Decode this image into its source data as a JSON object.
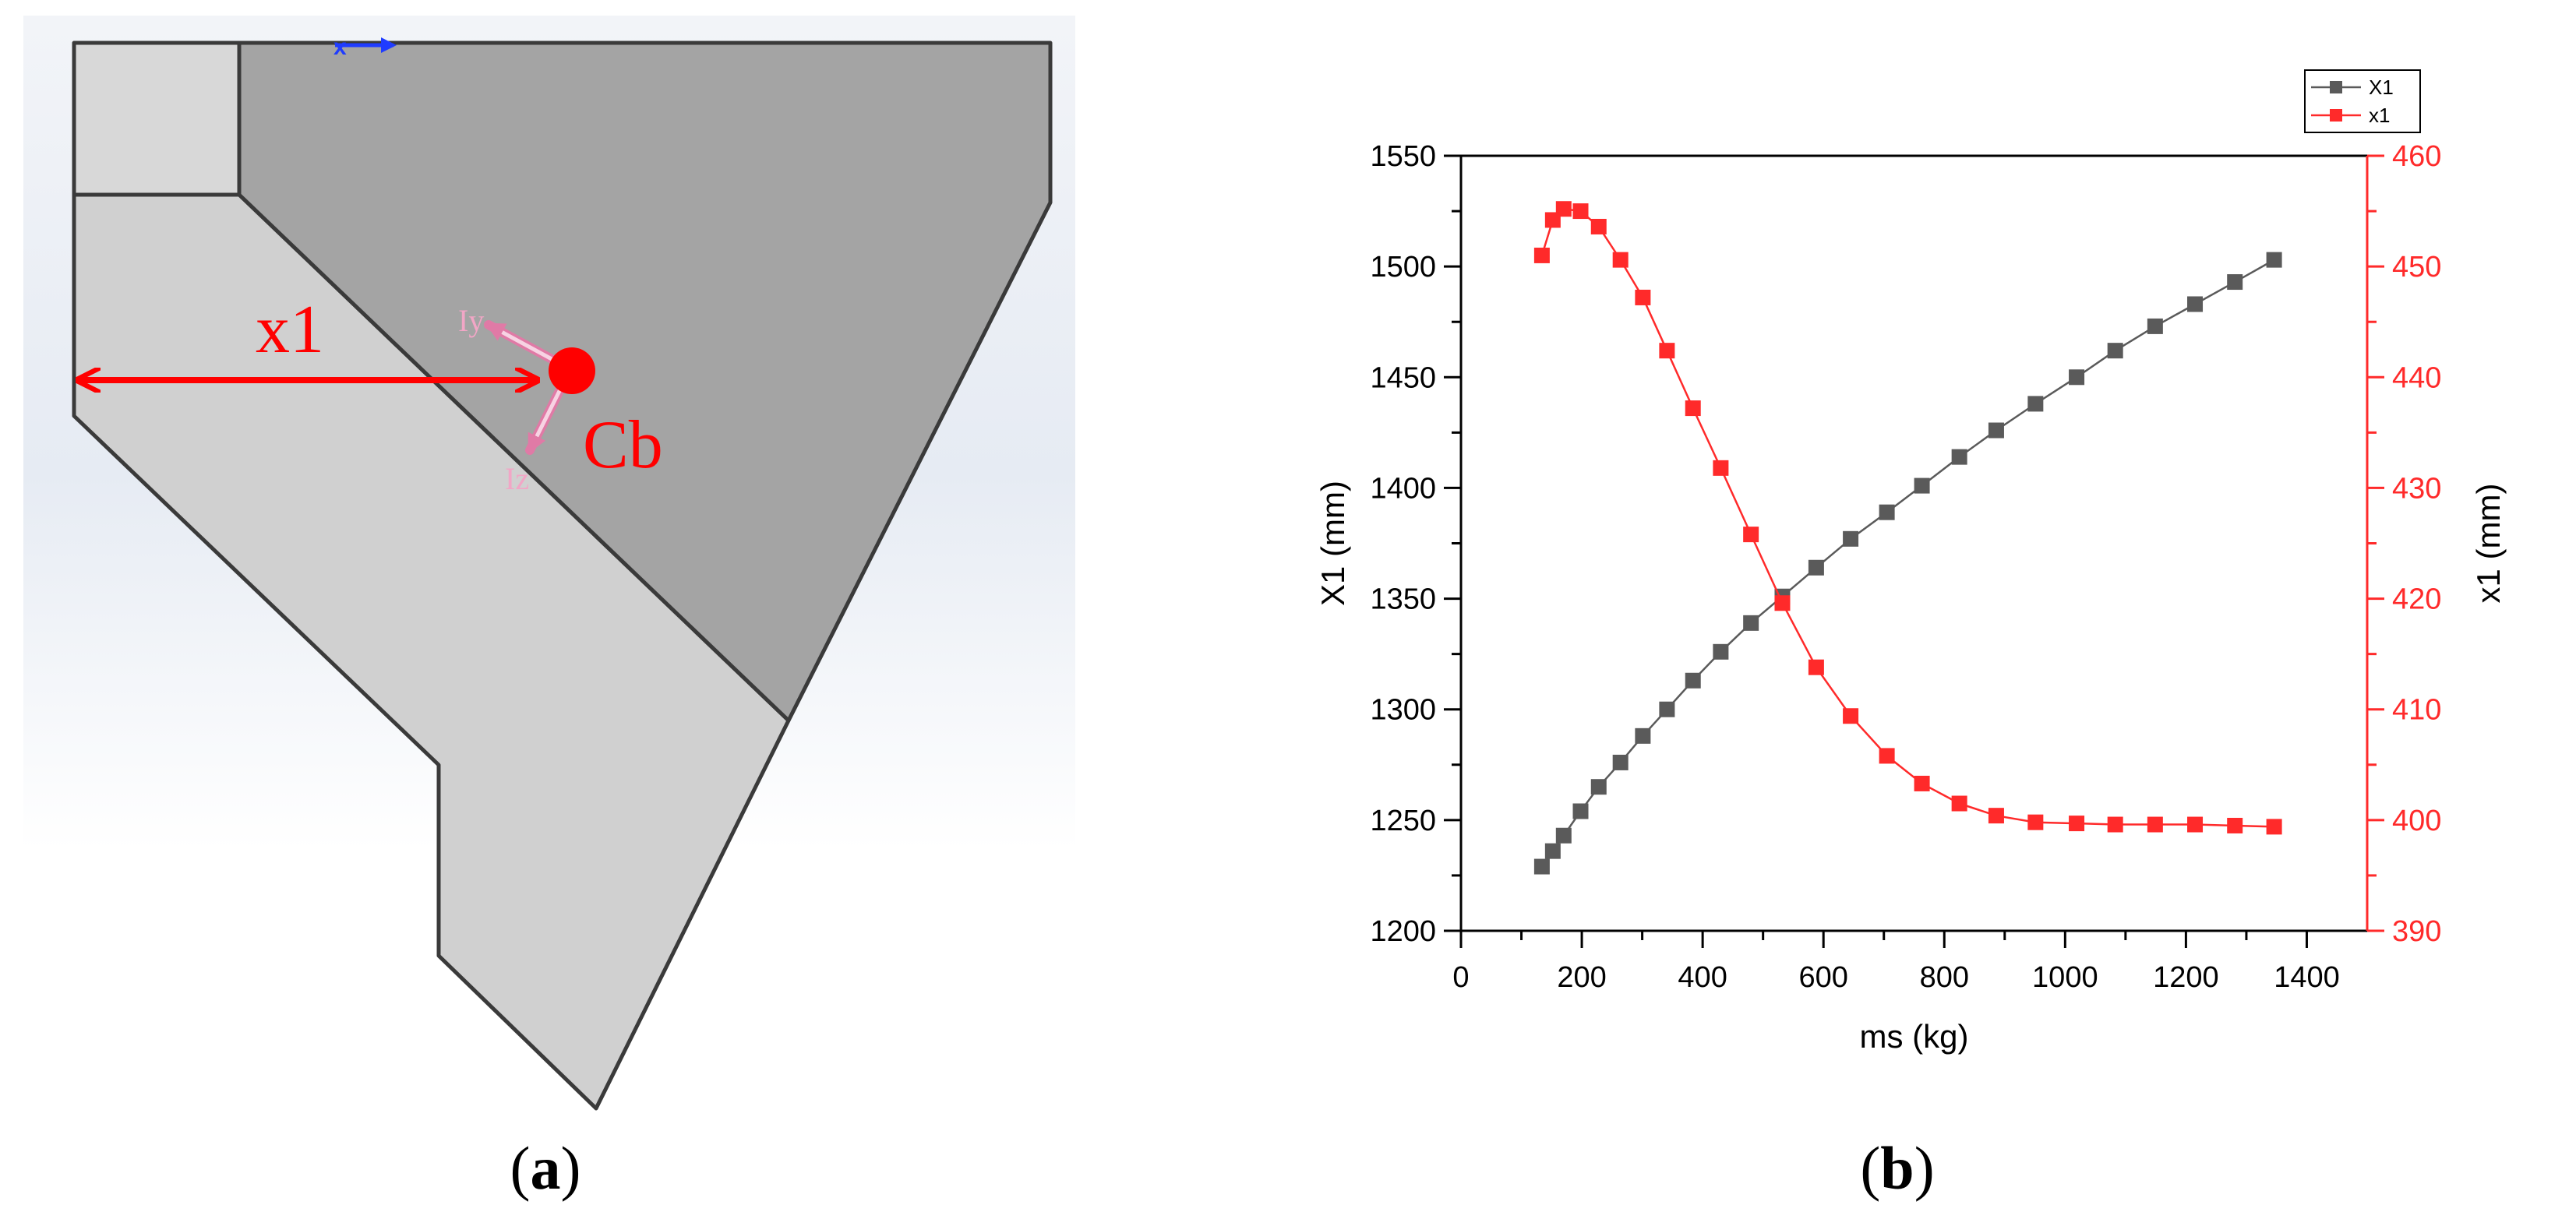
{
  "figure": {
    "panel_a": {
      "caption_letter": "a",
      "dimension_label": "x1",
      "point_label": "Cb",
      "inertia_label_y": "Iy",
      "inertia_label_z": "Iz",
      "axis_indicator_label": "x",
      "colors": {
        "background_top": "#f2f4f8",
        "light_part": "#d0d0d0",
        "dark_part": "#a4a4a4",
        "top_block": "#d8d8d8",
        "outline": "#3a3a3a",
        "dimension": "#ff0000",
        "inertia_arrow": "#f2a6c6",
        "axis_indicator": "#1f3cff"
      }
    },
    "panel_b": {
      "caption_letter": "b"
    }
  },
  "chart_data": {
    "type": "line",
    "xlabel": "ms (kg)",
    "ylabel_left": "X1 (mm)",
    "ylabel_right": "x1 (mm)",
    "xlim": [
      0,
      1500
    ],
    "ylim_left": [
      1200,
      1550
    ],
    "ylim_right": [
      390,
      460
    ],
    "x_ticks": [
      0,
      200,
      400,
      600,
      800,
      1000,
      1200,
      1400
    ],
    "y_ticks_left": [
      1200,
      1250,
      1300,
      1350,
      1400,
      1450,
      1500,
      1550
    ],
    "y_ticks_right": [
      390,
      400,
      410,
      420,
      430,
      440,
      450,
      460
    ],
    "grid": false,
    "legend_position": "top-right",
    "series": [
      {
        "name": "X1",
        "axis": "left",
        "color": "#5a5a5a",
        "marker": "square",
        "x": [
          134,
          152,
          170,
          198,
          228,
          264,
          301,
          341,
          384,
          430,
          480,
          532,
          588,
          645,
          705,
          763,
          825,
          886,
          951,
          1019,
          1083,
          1149,
          1215,
          1281,
          1346
        ],
        "y": [
          1229,
          1236,
          1243,
          1254,
          1265,
          1276,
          1288,
          1300,
          1313,
          1326,
          1339,
          1351,
          1364,
          1377,
          1389,
          1401,
          1414,
          1426,
          1438,
          1450,
          1462,
          1473,
          1483,
          1493,
          1503
        ]
      },
      {
        "name": "x1",
        "axis": "right",
        "color": "#ff2a2a",
        "marker": "square",
        "x": [
          134,
          152,
          170,
          198,
          228,
          264,
          301,
          341,
          384,
          430,
          480,
          532,
          588,
          645,
          705,
          763,
          825,
          886,
          951,
          1019,
          1083,
          1149,
          1215,
          1281,
          1346
        ],
        "y": [
          451.0,
          454.2,
          455.2,
          455.0,
          453.6,
          450.6,
          447.2,
          442.4,
          437.2,
          431.8,
          425.8,
          419.6,
          413.8,
          409.4,
          405.8,
          403.3,
          401.5,
          400.4,
          399.8,
          399.7,
          399.6,
          399.6,
          399.6,
          399.5,
          399.4
        ]
      }
    ]
  }
}
